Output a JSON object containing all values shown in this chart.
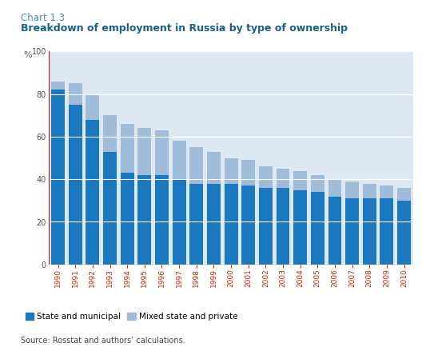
{
  "years": [
    "1990",
    "1991",
    "1992",
    "1993",
    "1994",
    "1995",
    "1996",
    "1997",
    "1998",
    "1999",
    "2000",
    "2001",
    "2002",
    "2003",
    "2004",
    "2005",
    "2006",
    "2007",
    "2008",
    "2009",
    "2010"
  ],
  "state_municipal": [
    82,
    75,
    68,
    53,
    43,
    42,
    42,
    40,
    38,
    38,
    38,
    37,
    36,
    36,
    35,
    34,
    32,
    31,
    31,
    31,
    30
  ],
  "mixed_state_private": [
    4,
    10,
    12,
    17,
    23,
    22,
    21,
    18,
    17,
    15,
    12,
    12,
    10,
    9,
    9,
    8,
    8,
    8,
    7,
    6,
    6
  ],
  "bar_color_state": "#1a78bf",
  "bar_color_mixed": "#a0bcd8",
  "plot_bg": "#dce8f4",
  "fig_bg": "#ffffff",
  "top_bar_color": "#1a78bf",
  "title_line1": "Chart 1.3",
  "title_line2": "Breakdown of employment in Russia by type of ownership",
  "ylabel": "%",
  "ylim": [
    0,
    100
  ],
  "yticks": [
    0,
    20,
    40,
    60,
    80,
    100
  ],
  "legend_state": "State and municipal",
  "legend_mixed": "Mixed state and private",
  "source_text": "Source: Rosstat and authors’ calculations.",
  "title_color1": "#4a90c0",
  "title_color2": "#1a5f8a",
  "xtick_color": "#cc2200",
  "ytick_label_color": "#555555",
  "grid_color": "#ffffff"
}
